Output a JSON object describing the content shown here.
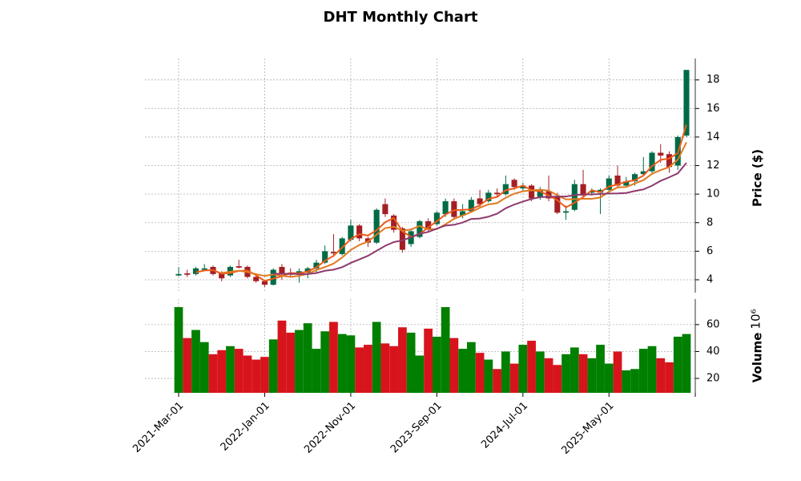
{
  "chart_data": {
    "type": "candlestick",
    "title": "DHT Monthly Chart",
    "categories": [
      "2021-Mar-01",
      null,
      null,
      null,
      null,
      null,
      null,
      null,
      null,
      null,
      "2022-Jan-01",
      null,
      null,
      null,
      null,
      null,
      null,
      null,
      null,
      null,
      "2022-Nov-01",
      null,
      null,
      null,
      null,
      null,
      null,
      null,
      null,
      null,
      "2023-Sep-01",
      null,
      null,
      null,
      null,
      null,
      null,
      null,
      null,
      null,
      "2024-Jul-01",
      null,
      null,
      null,
      null,
      null,
      null,
      null,
      null,
      null,
      "2025-May-01",
      null,
      null,
      null,
      null,
      null,
      null,
      null,
      null,
      null
    ],
    "open": [
      4.3,
      4.45,
      4.4,
      4.7,
      4.9,
      4.5,
      4.3,
      4.95,
      4.9,
      4.2,
      3.9,
      3.65,
      4.9,
      4.5,
      4.35,
      4.5,
      4.8,
      5.2,
      5.95,
      5.8,
      6.8,
      7.8,
      6.9,
      6.6,
      9.3,
      8.5,
      7.6,
      6.5,
      7.0,
      8.1,
      7.9,
      8.6,
      9.5,
      8.5,
      8.8,
      9.7,
      9.5,
      10.1,
      10.0,
      11.0,
      10.4,
      10.6,
      9.8,
      10.2,
      9.8,
      8.7,
      8.9,
      10.7,
      10.1,
      10.1,
      10.3,
      11.3,
      10.6,
      10.9,
      11.4,
      11.6,
      12.9,
      12.8,
      12.0,
      14.1
    ],
    "high": [
      4.9,
      4.7,
      4.9,
      5.1,
      5.0,
      4.6,
      5.0,
      5.4,
      5.0,
      4.3,
      4.0,
      4.8,
      5.1,
      4.8,
      4.8,
      4.9,
      5.4,
      6.4,
      7.2,
      7.0,
      8.2,
      7.9,
      7.0,
      9.0,
      9.7,
      8.6,
      7.7,
      7.6,
      8.2,
      8.3,
      8.8,
      9.7,
      9.7,
      9.3,
      9.8,
      10.3,
      10.3,
      10.4,
      11.3,
      11.1,
      10.8,
      10.7,
      10.5,
      11.3,
      10.1,
      9.2,
      11.0,
      11.7,
      10.4,
      10.4,
      11.3,
      12.0,
      11.2,
      11.5,
      12.6,
      13.0,
      13.5,
      13.0,
      14.1,
      18.7
    ],
    "low": [
      4.25,
      4.2,
      4.3,
      4.6,
      4.3,
      3.9,
      4.2,
      4.8,
      4.1,
      3.8,
      3.5,
      3.6,
      4.0,
      4.2,
      3.8,
      4.1,
      4.5,
      5.1,
      5.6,
      5.7,
      6.7,
      6.7,
      6.3,
      6.5,
      8.4,
      7.3,
      5.9,
      6.3,
      6.9,
      7.3,
      7.8,
      8.4,
      8.2,
      8.3,
      8.7,
      9.1,
      9.4,
      9.8,
      9.9,
      10.3,
      10.2,
      9.5,
      9.6,
      9.5,
      8.6,
      8.2,
      8.8,
      9.8,
      9.9,
      8.6,
      10.1,
      10.4,
      10.5,
      10.6,
      11.3,
      11.4,
      12.2,
      11.5,
      11.7,
      14.0
    ],
    "close": [
      4.4,
      4.35,
      4.8,
      4.8,
      4.4,
      4.1,
      4.9,
      4.85,
      4.2,
      3.9,
      3.65,
      4.7,
      4.4,
      4.35,
      4.6,
      4.8,
      5.2,
      6.0,
      5.85,
      6.9,
      7.8,
      6.9,
      6.6,
      8.9,
      8.6,
      7.5,
      6.1,
      7.4,
      8.1,
      7.5,
      8.7,
      9.5,
      8.4,
      8.8,
      9.6,
      9.3,
      10.1,
      10.0,
      10.7,
      10.5,
      10.6,
      9.7,
      10.3,
      9.7,
      8.7,
      8.8,
      10.7,
      9.9,
      10.2,
      10.3,
      11.1,
      10.6,
      10.9,
      11.4,
      11.6,
      12.9,
      12.7,
      11.9,
      14.0,
      18.7
    ],
    "up_color": "#006b45",
    "down_color": "#a31f23",
    "ylabel": "Price ($)",
    "ylim": [
      3.1,
      19.5
    ],
    "yticks": [
      4,
      6,
      8,
      10,
      12,
      14,
      16,
      18
    ],
    "moving_averages": [
      {
        "color": "#ee5a19",
        "values": [
          null,
          null,
          4.52,
          4.65,
          4.67,
          4.43,
          4.47,
          4.62,
          4.65,
          4.32,
          3.92,
          4.08,
          4.25,
          4.48,
          4.45,
          4.58,
          4.87,
          5.33,
          5.68,
          6.25,
          6.85,
          7.2,
          7.1,
          7.47,
          8.03,
          8.33,
          7.4,
          7.0,
          7.2,
          7.67,
          8.1,
          8.57,
          8.87,
          8.9,
          8.93,
          9.23,
          9.67,
          9.8,
          10.27,
          10.4,
          10.6,
          10.27,
          10.2,
          9.9,
          9.57,
          9.07,
          9.4,
          9.8,
          10.27,
          10.13,
          10.53,
          10.67,
          10.87,
          10.97,
          11.3,
          11.97,
          12.4,
          12.5,
          12.87,
          14.87
        ]
      },
      {
        "color": "#e07a22",
        "values": [
          null,
          null,
          null,
          null,
          null,
          4.48,
          4.56,
          4.64,
          4.54,
          4.39,
          4.27,
          4.37,
          4.28,
          4.2,
          4.27,
          4.42,
          4.68,
          4.89,
          5.13,
          5.56,
          6.09,
          6.44,
          6.68,
          7.16,
          7.62,
          7.72,
          7.43,
          7.52,
          7.77,
          7.53,
          7.55,
          7.88,
          8.27,
          8.5,
          8.75,
          9.05,
          9.28,
          9.37,
          9.75,
          10.03,
          10.2,
          10.27,
          10.3,
          10.25,
          9.92,
          9.63,
          9.65,
          9.68,
          9.67,
          9.77,
          10.17,
          10.47,
          10.5,
          10.75,
          10.98,
          11.42,
          11.68,
          11.9,
          12.42,
          13.63
        ]
      },
      {
        "color": "#8e3a6e",
        "values": [
          null,
          null,
          null,
          null,
          null,
          null,
          null,
          null,
          null,
          null,
          null,
          4.42,
          4.42,
          4.42,
          4.4,
          4.4,
          4.47,
          4.63,
          4.71,
          4.88,
          5.18,
          5.43,
          5.68,
          6.03,
          6.38,
          6.64,
          6.76,
          6.98,
          7.22,
          7.35,
          7.58,
          7.8,
          7.85,
          8.01,
          8.26,
          8.29,
          8.42,
          8.63,
          9.01,
          9.27,
          9.48,
          9.66,
          9.79,
          9.81,
          9.83,
          9.83,
          9.93,
          9.98,
          9.98,
          10.01,
          10.04,
          10.05,
          10.08,
          10.22,
          10.33,
          10.59,
          10.93,
          11.18,
          11.46,
          12.19
        ]
      }
    ],
    "volume": {
      "ylabel": "Volume",
      "multiplier_label": "10⁶",
      "values": [
        73,
        50,
        56,
        47,
        38,
        41,
        44,
        42,
        37,
        34,
        36,
        49,
        63,
        54,
        56,
        61,
        42,
        55,
        62,
        53,
        52,
        43,
        45,
        62,
        46,
        44,
        58,
        54,
        37,
        57,
        51,
        73,
        50,
        42,
        47,
        39,
        34,
        27,
        40,
        31,
        45,
        48,
        40,
        35,
        30,
        38,
        43,
        38,
        35,
        45,
        31,
        40,
        26,
        27,
        42,
        44,
        35,
        32,
        51,
        53
      ],
      "up_color": "#007f00",
      "down_color": "#d7141c",
      "ylim": [
        9.3,
        79
      ],
      "yticks": [
        20,
        40,
        60
      ]
    },
    "grid": true
  }
}
